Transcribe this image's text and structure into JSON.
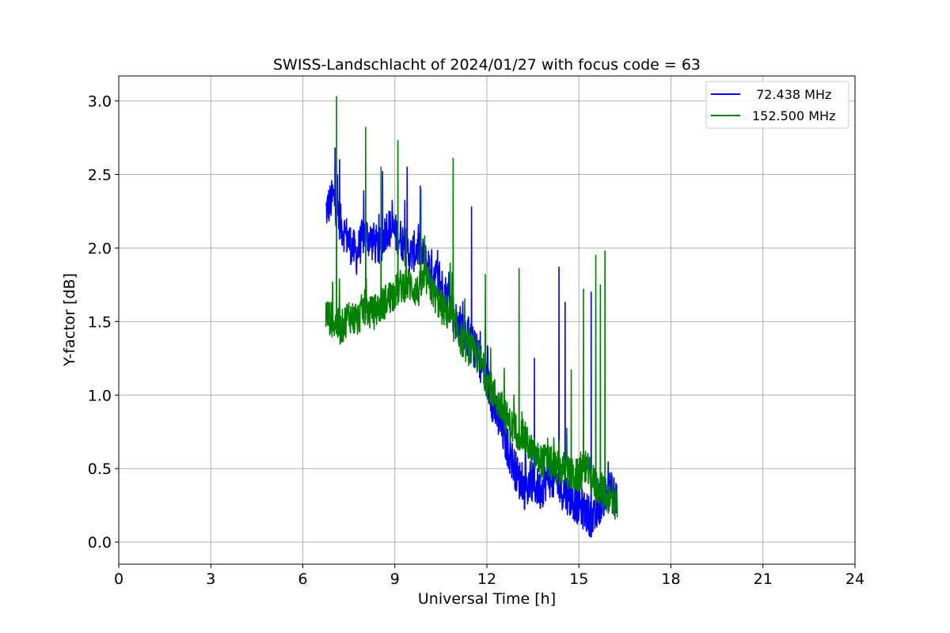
{
  "chart_data": {
    "type": "line",
    "title": "SWISS-Landschlacht of 2024/01/27 with focus code = 63",
    "xlabel": "Universal Time [h]",
    "ylabel": "Y-factor [dB]",
    "xlim": [
      0,
      24
    ],
    "ylim": [
      -0.15,
      3.17
    ],
    "xticks": [
      0,
      3,
      6,
      9,
      12,
      15,
      18,
      21,
      24
    ],
    "xtick_labels": [
      "0",
      "3",
      "6",
      "9",
      "12",
      "15",
      "18",
      "21",
      "24"
    ],
    "yticks": [
      0.0,
      0.5,
      1.0,
      1.5,
      2.0,
      2.5,
      3.0
    ],
    "ytick_labels": [
      "0.0",
      "0.5",
      "1.0",
      "1.5",
      "2.0",
      "2.5",
      "3.0"
    ],
    "grid": true,
    "legend_position": "top-right",
    "series": [
      {
        "name": " 72.438 MHz",
        "color": "#0000ff",
        "x": [
          6.75,
          7.0,
          7.25,
          7.5,
          7.75,
          8.0,
          8.25,
          8.5,
          8.75,
          9.0,
          9.25,
          9.5,
          9.75,
          10.0,
          10.25,
          10.5,
          10.75,
          11.0,
          11.25,
          11.5,
          11.75,
          12.0,
          12.25,
          12.5,
          12.75,
          13.0,
          13.25,
          13.5,
          13.75,
          14.0,
          14.25,
          14.5,
          14.75,
          15.0,
          15.25,
          15.5,
          15.75,
          16.0,
          16.25
        ],
        "y": [
          2.25,
          2.35,
          2.15,
          2.05,
          1.95,
          2.1,
          2.05,
          2.0,
          2.15,
          2.1,
          2.05,
          1.95,
          2.0,
          1.9,
          1.85,
          1.75,
          1.65,
          1.5,
          1.45,
          1.35,
          1.25,
          1.1,
          0.9,
          0.75,
          0.6,
          0.45,
          0.35,
          0.4,
          0.35,
          0.45,
          0.4,
          0.35,
          0.3,
          0.25,
          0.2,
          0.15,
          0.3,
          0.35,
          0.3
        ]
      },
      {
        "name": "152.500 MHz",
        "color": "#008000",
        "x": [
          6.75,
          7.0,
          7.25,
          7.5,
          7.75,
          8.0,
          8.25,
          8.5,
          8.75,
          9.0,
          9.25,
          9.5,
          9.75,
          10.0,
          10.25,
          10.5,
          10.75,
          11.0,
          11.25,
          11.5,
          11.75,
          12.0,
          12.25,
          12.5,
          12.75,
          13.0,
          13.25,
          13.5,
          13.75,
          14.0,
          14.25,
          14.5,
          14.75,
          15.0,
          15.25,
          15.5,
          15.75,
          16.0,
          16.25
        ],
        "y": [
          1.55,
          1.5,
          1.45,
          1.55,
          1.5,
          1.6,
          1.55,
          1.6,
          1.65,
          1.7,
          1.75,
          1.75,
          1.7,
          1.8,
          1.7,
          1.6,
          1.55,
          1.45,
          1.35,
          1.3,
          1.25,
          1.1,
          1.0,
          0.9,
          0.8,
          0.75,
          0.7,
          0.6,
          0.55,
          0.55,
          0.5,
          0.5,
          0.45,
          0.45,
          0.5,
          0.4,
          0.35,
          0.3,
          0.25
        ]
      }
    ],
    "spikes": [
      {
        "series": 0,
        "x": 7.05,
        "y": 2.68
      },
      {
        "series": 0,
        "x": 7.2,
        "y": 2.6
      },
      {
        "series": 0,
        "x": 8.6,
        "y": 2.52
      },
      {
        "series": 0,
        "x": 9.4,
        "y": 2.55
      },
      {
        "series": 0,
        "x": 11.5,
        "y": 2.28
      },
      {
        "series": 0,
        "x": 14.35,
        "y": 1.87
      },
      {
        "series": 0,
        "x": 14.55,
        "y": 1.63
      },
      {
        "series": 0,
        "x": 15.4,
        "y": 1.7
      },
      {
        "series": 0,
        "x": 13.55,
        "y": 1.25
      },
      {
        "series": 1,
        "x": 7.1,
        "y": 3.03
      },
      {
        "series": 1,
        "x": 8.05,
        "y": 2.82
      },
      {
        "series": 1,
        "x": 9.1,
        "y": 2.73
      },
      {
        "series": 1,
        "x": 10.9,
        "y": 2.61
      },
      {
        "series": 1,
        "x": 8.55,
        "y": 2.55
      },
      {
        "series": 1,
        "x": 9.85,
        "y": 2.4
      },
      {
        "series": 1,
        "x": 11.95,
        "y": 1.82
      },
      {
        "series": 1,
        "x": 13.05,
        "y": 1.86
      },
      {
        "series": 1,
        "x": 15.55,
        "y": 1.95
      },
      {
        "series": 1,
        "x": 15.85,
        "y": 1.98
      },
      {
        "series": 1,
        "x": 15.7,
        "y": 1.75
      },
      {
        "series": 1,
        "x": 15.15,
        "y": 1.72
      },
      {
        "series": 1,
        "x": 14.75,
        "y": 1.17
      }
    ]
  }
}
